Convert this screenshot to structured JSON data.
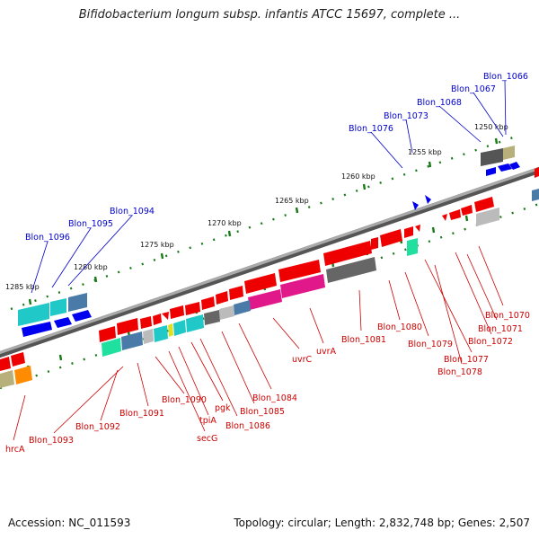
{
  "title": "Bifidobacterium longum subsp. infantis ATCC 15697, complete ...",
  "footer": {
    "accession": "Accession: NC_011593",
    "summary": "Topology: circular; Length: 2,832,748 bp; Genes: 2,507"
  },
  "colors": {
    "forward_label": "#0000cc",
    "reverse_label": "#cc0000",
    "backbone": "#777777",
    "tick": "#1a7a1a",
    "forward_gene": "#0000ee",
    "reverse_gene": "#ee0000"
  },
  "ticks": [
    "1250 kbp",
    "1255 kbp",
    "1260 kbp",
    "1265 kbp",
    "1270 kbp",
    "1275 kbp",
    "1280 kbp",
    "1285 kbp"
  ],
  "forward_labels": [
    "Blon_1066",
    "Blon_1067",
    "Blon_1068",
    "Blon_1073",
    "Blon_1076",
    "Blon_1094",
    "Blon_1095",
    "Blon_1096"
  ],
  "reverse_labels": [
    "Blon_1070",
    "Blon_1071",
    "Blon_1072",
    "Blon_1077",
    "Blon_1078",
    "Blon_1079",
    "Blon_1080",
    "Blon_1081",
    "uvrA",
    "uvrC",
    "Blon_1084",
    "Blon_1085",
    "Blon_1086",
    "pgk",
    "tpiA",
    "secG",
    "Blon_1090",
    "Blon_1091",
    "Blon_1092",
    "Blon_1093",
    "hrcA"
  ]
}
